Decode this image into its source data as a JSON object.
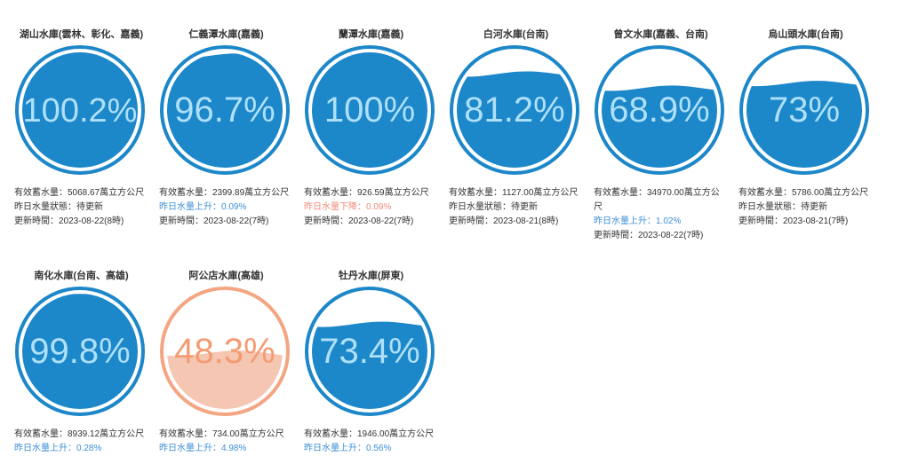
{
  "labels": {
    "capacity_prefix": "有效蓄水量：",
    "update_prefix": "更新時間："
  },
  "colors": {
    "blue_stroke": "#1c87c9",
    "blue_fill": "#1c87c9",
    "blue_text_on_fill": "#aee0fa",
    "orange_stroke": "#f4a582",
    "orange_fill": "#f5c6b1",
    "orange_text": "#f49b74",
    "up_text": "#3d8ed5",
    "down_text": "#f08a7a"
  },
  "reservoirs": [
    {
      "name": "湖山水庫(雲林、彰化、嘉義)",
      "percent_text": "100.2%",
      "level": 1.0,
      "theme": "blue",
      "capacity": "5068.67萬立方公尺",
      "status": "昨日水量狀態：待更新",
      "status_type": "neutral",
      "updated": "2023-08-22(8時)"
    },
    {
      "name": "仁義潭水庫(嘉義)",
      "percent_text": "96.7%",
      "level": 0.967,
      "theme": "blue",
      "capacity": "2399.89萬立方公尺",
      "status": "昨日水量上升：0.09%",
      "status_type": "up",
      "updated": "2023-08-22(7時)"
    },
    {
      "name": "蘭潭水庫(嘉義)",
      "percent_text": "100%",
      "level": 1.0,
      "theme": "blue",
      "capacity": "926.59萬立方公尺",
      "status": "昨日水量下降：0.09%",
      "status_type": "down",
      "updated": "2023-08-22(7時)"
    },
    {
      "name": "白河水庫(台南)",
      "percent_text": "81.2%",
      "level": 0.812,
      "theme": "blue",
      "capacity": "1127.00萬立方公尺",
      "status": "昨日水量狀態：待更新",
      "status_type": "neutral",
      "updated": "2023-08-21(8時)"
    },
    {
      "name": "曾文水庫(嘉義、台南)",
      "percent_text": "68.9%",
      "level": 0.689,
      "theme": "blue",
      "capacity": "34970.00萬立方公尺",
      "status": "昨日水量上升：1.02%",
      "status_type": "up",
      "updated": "2023-08-22(7時)"
    },
    {
      "name": "烏山頭水庫(台南)",
      "percent_text": "73%",
      "level": 0.73,
      "theme": "blue",
      "capacity": "5786.00萬立方公尺",
      "status": "昨日水量狀態：待更新",
      "status_type": "neutral",
      "updated": "2023-08-21(7時)"
    },
    {
      "name": "南化水庫(台南、高雄)",
      "percent_text": "99.8%",
      "level": 0.998,
      "theme": "blue",
      "capacity": "8939.12萬立方公尺",
      "status": "昨日水量上升：0.28%",
      "status_type": "up",
      "updated": ""
    },
    {
      "name": "阿公店水庫(高雄)",
      "percent_text": "48.3%",
      "level": 0.483,
      "theme": "orange",
      "capacity": "734.00萬立方公尺",
      "status": "昨日水量上升：4.98%",
      "status_type": "up",
      "updated": ""
    },
    {
      "name": "牡丹水庫(屏東)",
      "percent_text": "73.4%",
      "level": 0.734,
      "theme": "blue",
      "capacity": "1946.00萬立方公尺",
      "status": "昨日水量上升：0.56%",
      "status_type": "up",
      "updated": ""
    }
  ]
}
